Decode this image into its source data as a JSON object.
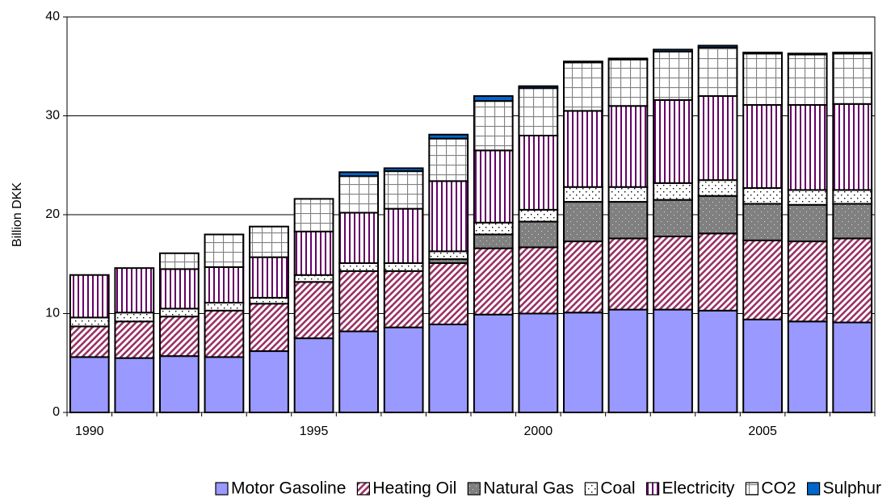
{
  "chart_data": {
    "type": "stacked-bar",
    "y_label": "Billion DKK",
    "categories": [
      "1990",
      null,
      null,
      null,
      null,
      "1995",
      null,
      null,
      null,
      null,
      "2000",
      null,
      null,
      null,
      null,
      "2005",
      null,
      null
    ],
    "ylim": [
      0,
      40
    ],
    "yticks": [
      0,
      10,
      20,
      30,
      40
    ],
    "grid": true,
    "legend": "bottom",
    "series": [
      {
        "name": "Motor Gasoline",
        "color": "#9999ff",
        "pattern": "solid",
        "values": [
          5.6,
          5.5,
          5.7,
          5.6,
          6.2,
          7.5,
          8.2,
          8.6,
          8.9,
          9.9,
          10.0,
          10.1,
          10.4,
          10.4,
          10.3,
          9.4,
          9.2,
          9.1
        ]
      },
      {
        "name": "Heating Oil",
        "color": "#993366",
        "pattern": "diagonal",
        "values": [
          3.1,
          3.7,
          4.0,
          4.7,
          4.8,
          5.7,
          6.1,
          5.7,
          6.2,
          6.7,
          6.7,
          7.2,
          7.2,
          7.4,
          7.8,
          8.0,
          8.1,
          8.5
        ]
      },
      {
        "name": "Natural Gas",
        "color": "#808080",
        "pattern": "dots",
        "values": [
          0,
          0,
          0,
          0,
          0,
          0,
          0,
          0,
          0.4,
          1.4,
          2.6,
          4.0,
          3.7,
          3.7,
          3.8,
          3.7,
          3.7,
          3.5
        ]
      },
      {
        "name": "Coal",
        "color": "#000000",
        "pattern": "sparse-dots",
        "values": [
          0.9,
          0.9,
          0.8,
          0.8,
          0.6,
          0.7,
          0.8,
          0.8,
          0.8,
          1.2,
          1.2,
          1.5,
          1.5,
          1.7,
          1.6,
          1.6,
          1.5,
          1.4
        ]
      },
      {
        "name": "Electricity",
        "color": "#660066",
        "pattern": "vertical",
        "values": [
          4.3,
          4.5,
          4.0,
          3.6,
          4.1,
          4.4,
          5.1,
          5.5,
          7.1,
          7.3,
          7.5,
          7.7,
          8.2,
          8.4,
          8.5,
          8.4,
          8.6,
          8.7
        ]
      },
      {
        "name": "CO2",
        "color": "#808080",
        "pattern": "grid",
        "values": [
          0,
          0,
          1.6,
          3.3,
          3.1,
          3.3,
          3.7,
          3.8,
          4.3,
          5.0,
          4.8,
          4.9,
          4.7,
          4.9,
          4.9,
          5.2,
          5.1,
          5.1
        ]
      },
      {
        "name": "Sulphur",
        "color": "#0066cc",
        "pattern": "solid",
        "values": [
          0,
          0,
          0,
          0,
          0,
          0,
          0.4,
          0.3,
          0.4,
          0.5,
          0.2,
          0.1,
          0.1,
          0.2,
          0.2,
          0.1,
          0.1,
          0.1
        ]
      }
    ]
  }
}
